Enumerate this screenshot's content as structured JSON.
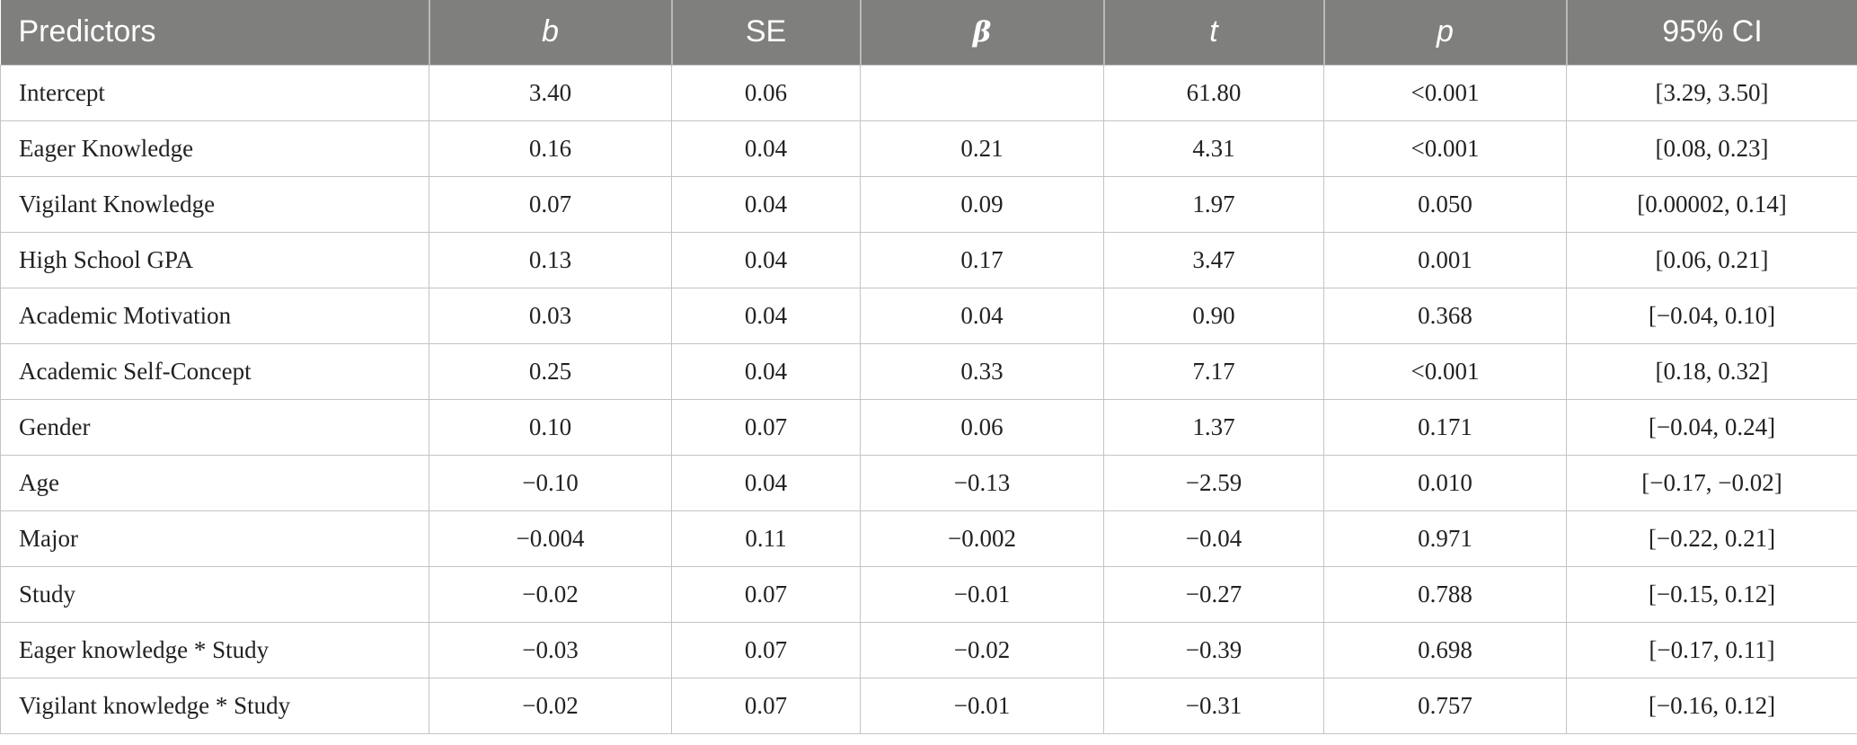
{
  "table": {
    "headers": [
      "Predictors",
      "b",
      "SE",
      "β",
      "t",
      "p",
      "95% CI"
    ],
    "rows": [
      [
        "Intercept",
        "3.40",
        "0.06",
        "",
        "61.80",
        "<0.001",
        "[3.29, 3.50]"
      ],
      [
        "Eager Knowledge",
        "0.16",
        "0.04",
        "0.21",
        "4.31",
        "<0.001",
        "[0.08, 0.23]"
      ],
      [
        "Vigilant Knowledge",
        "0.07",
        "0.04",
        "0.09",
        "1.97",
        "0.050",
        "[0.00002, 0.14]"
      ],
      [
        "High School GPA",
        "0.13",
        "0.04",
        "0.17",
        "3.47",
        "0.001",
        "[0.06, 0.21]"
      ],
      [
        "Academic Motivation",
        "0.03",
        "0.04",
        "0.04",
        "0.90",
        "0.368",
        "[−0.04, 0.10]"
      ],
      [
        "Academic Self-Concept",
        "0.25",
        "0.04",
        "0.33",
        "7.17",
        "<0.001",
        "[0.18, 0.32]"
      ],
      [
        "Gender",
        "0.10",
        "0.07",
        "0.06",
        "1.37",
        "0.171",
        "[−0.04, 0.24]"
      ],
      [
        "Age",
        "−0.10",
        "0.04",
        "−0.13",
        "−2.59",
        "0.010",
        "[−0.17, −0.02]"
      ],
      [
        "Major",
        "−0.004",
        "0.11",
        "−0.002",
        "−0.04",
        "0.971",
        "[−0.22, 0.21]"
      ],
      [
        "Study",
        "−0.02",
        "0.07",
        "−0.01",
        "−0.27",
        "0.788",
        "[−0.15, 0.12]"
      ],
      [
        "Eager knowledge * Study",
        "−0.03",
        "0.07",
        "−0.02",
        "−0.39",
        "0.698",
        "[−0.17, 0.11]"
      ],
      [
        "Vigilant knowledge * Study",
        "−0.02",
        "0.07",
        "−0.01",
        "−0.31",
        "0.757",
        "[−0.16, 0.12]"
      ]
    ]
  },
  "colors": {
    "header_bg": "#7f7f7e",
    "header_text": "#ffffff",
    "grid_line": "#c4c4c4",
    "body_text": "#222222"
  }
}
